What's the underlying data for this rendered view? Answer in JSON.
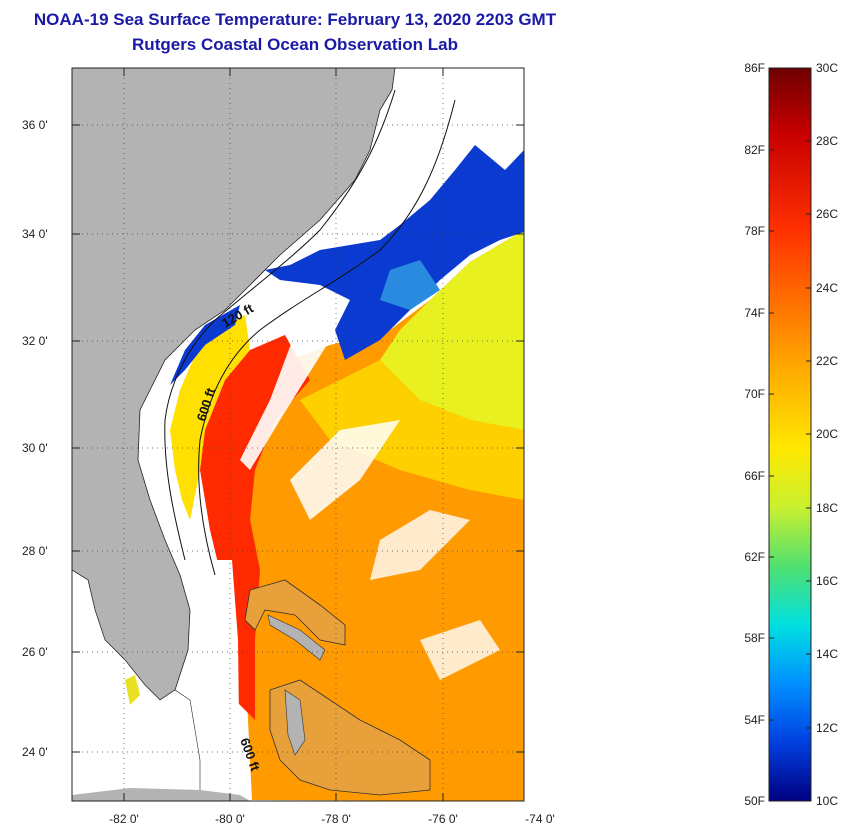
{
  "header": {
    "title": "NOAA-19 Sea Surface Temperature:  February 13, 2020 2203 GMT",
    "subtitle": "Rutgers Coastal Ocean Observation Lab"
  },
  "map": {
    "lat_labels": [
      "36 0'",
      "34 0'",
      "32 0'",
      "30 0'",
      "28 0'",
      "26 0'",
      "24 0'"
    ],
    "lon_labels": [
      "-82 0'",
      "-80 0'",
      "-78 0'",
      "-76 0'",
      "-74 0'"
    ],
    "contour_labels": [
      "120 ft",
      "600 ft",
      "600 ft"
    ],
    "land_color": "#b3b3b3",
    "ocean_no_data_color": "#ffffff"
  },
  "colorbar": {
    "f_labels": [
      "86F",
      "82F",
      "78F",
      "74F",
      "70F",
      "66F",
      "62F",
      "58F",
      "54F",
      "50F"
    ],
    "c_labels": [
      "30C",
      "28C",
      "26C",
      "24C",
      "22C",
      "20C",
      "18C",
      "16C",
      "14C",
      "12C",
      "10C"
    ],
    "colors": [
      "#6e0000",
      "#c80000",
      "#ff3000",
      "#ff7000",
      "#ffb000",
      "#ffe000",
      "#d8f020",
      "#60e060",
      "#00e0e0",
      "#0090ff",
      "#0040e0",
      "#000080"
    ]
  }
}
